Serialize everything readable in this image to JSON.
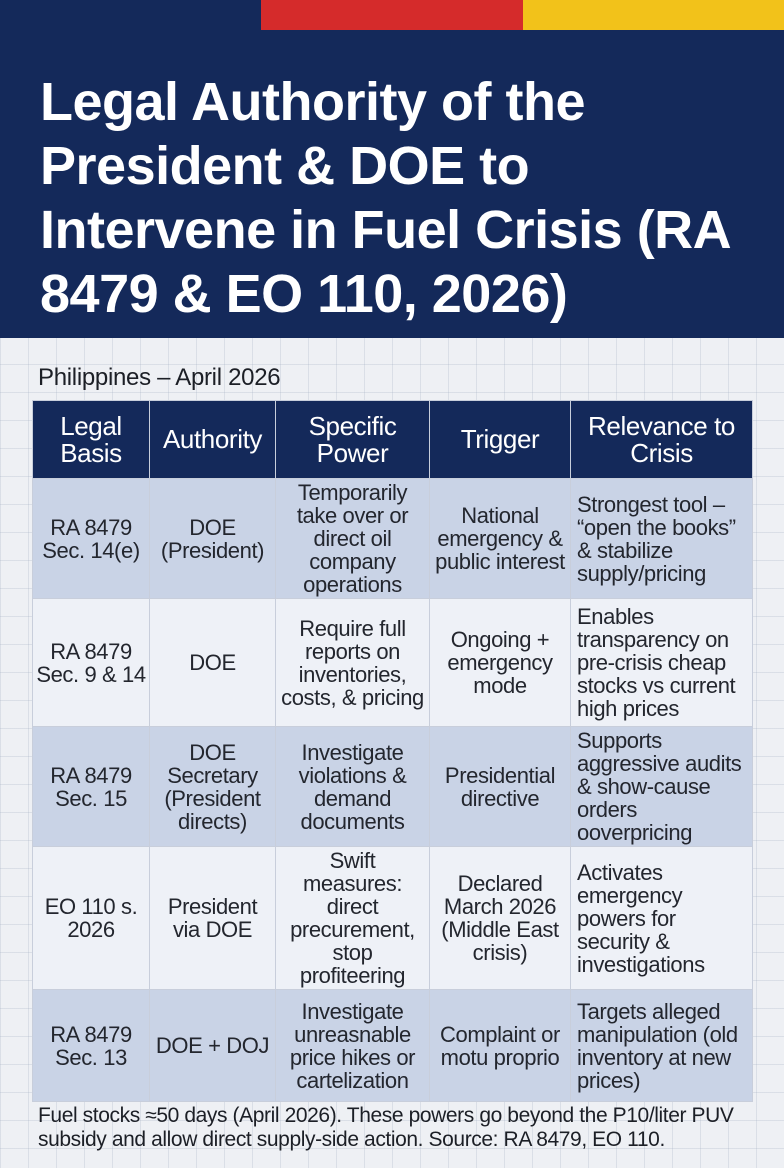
{
  "colors": {
    "stripe_blue": "#14295a",
    "stripe_red": "#d52b2b",
    "stripe_yellow": "#f2c21a",
    "header_bg": "#14295a",
    "row_shade": "#c9d3e6",
    "row_light": "#eef1f7"
  },
  "title": "Legal Authority of the President & DOE to Intervene in Fuel Crisis (RA 8479 & EO 110, 2026)",
  "subtitle": "Philippines – April 2026",
  "table": {
    "headers": [
      "Legal Basis",
      "Authority",
      "Specific Power",
      "Trigger",
      "Relevance to Crisis"
    ],
    "rows": [
      {
        "legal_basis": "RA 8479 Sec. 14(e)",
        "authority": "DOE (President)",
        "power": "Temporarily take over or direct oil company operations",
        "trigger": "National emergency & public interest",
        "relevance": "Strongest tool – “open the books” & stabilize supply/pricing"
      },
      {
        "legal_basis": "RA 8479 Sec. 9 & 14",
        "authority": "DOE",
        "power": "Require full reports on inventories, costs, & pricing",
        "trigger": "Ongoing + emergency mode",
        "relevance": "Enables transparency on pre-crisis cheap stocks vs current high prices"
      },
      {
        "legal_basis": "RA 8479 Sec. 15",
        "authority": "DOE Secretary (President directs)",
        "power": "Investigate violations & demand documents",
        "trigger": "Presidential directive",
        "relevance": "Supports aggressive audits & show-cause orders ooverpricing"
      },
      {
        "legal_basis": "EO 110 s. 2026",
        "authority": "President via DOE",
        "power": "Swift measures: direct precurement, stop profiteering",
        "trigger": "Declared March 2026 (Middle East crisis)",
        "relevance": "Activates emergency powers for security & investigations"
      },
      {
        "legal_basis": "RA 8479 Sec. 13",
        "authority": "DOE + DOJ",
        "power": "Investigate unreasnable price hikes or cartelization",
        "trigger": "Complaint or motu proprio",
        "relevance": "Targets alleged manipulation (old inventory at new prices)"
      }
    ]
  },
  "footer": "Fuel stocks ≈50 days (April 2026). These powers go beyond the P10/liter PUV subsidy and allow direct supply-side action. Source: RA 8479, EO 110."
}
